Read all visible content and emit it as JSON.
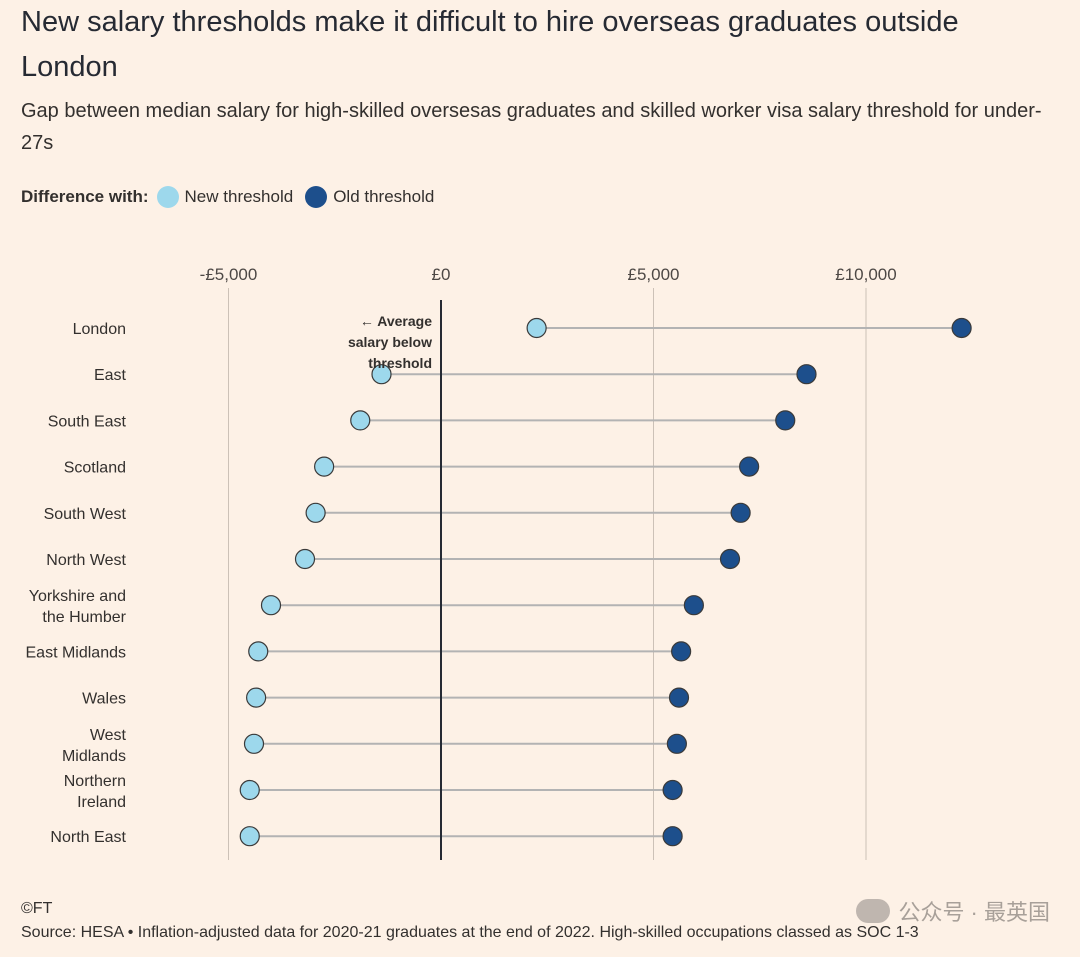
{
  "title": "New salary thresholds make it difficult to hire overseas graduates outside London",
  "subtitle": "Gap between median salary for high-skilled oversesas graduates and skilled worker visa salary threshold for under-27s",
  "legend": {
    "lead": "Difference with:",
    "new_label": "New threshold",
    "old_label": "Old threshold"
  },
  "colors": {
    "new": "#9dd8ec",
    "old": "#1d4f8c",
    "connector": "#b3b3b3",
    "zero_line": "#262a33",
    "grid": "#ccc1b7"
  },
  "chart_data": {
    "type": "dumbbell",
    "xlim": [
      -5200,
      12200
    ],
    "x_ticks": [
      -5000,
      0,
      5000,
      10000
    ],
    "x_tick_labels": [
      "-£5,000",
      "£0",
      "£5,000",
      "£10,000"
    ],
    "grid": true,
    "annotation": "← Average salary below threshold",
    "categories": [
      "London",
      "East",
      "South East",
      "Scotland",
      "South West",
      "North West",
      "Yorkshire and the Humber",
      "East Midlands",
      "Wales",
      "West Midlands",
      "Northern Ireland",
      "North East"
    ],
    "series": [
      {
        "name": "New threshold",
        "values": [
          2250,
          -1400,
          -1900,
          -2750,
          -2950,
          -3200,
          -4000,
          -4300,
          -4350,
          -4400,
          -4500,
          -4500
        ]
      },
      {
        "name": "Old threshold",
        "values": [
          12250,
          8600,
          8100,
          7250,
          7050,
          6800,
          5950,
          5650,
          5600,
          5550,
          5450,
          5450
        ]
      }
    ]
  },
  "footer": {
    "copyright": "©FT",
    "source": "Source: HESA • Inflation-adjusted data for 2020-21 graduates at the end of 2022. High-skilled occupations classed as SOC 1-3"
  },
  "watermark": "公众号 · 最英国"
}
